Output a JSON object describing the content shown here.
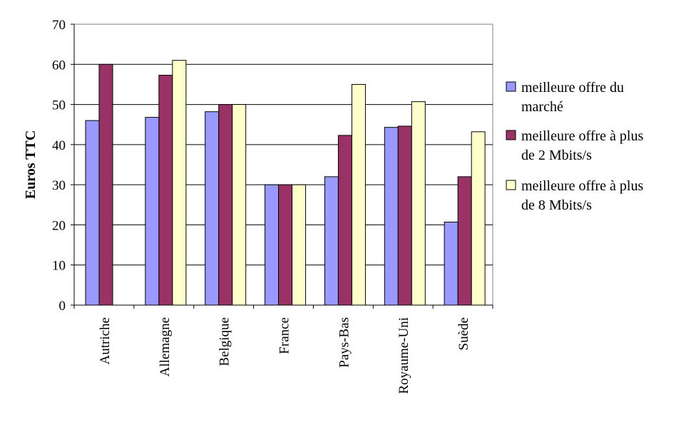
{
  "chart_data": {
    "type": "bar",
    "title": "",
    "xlabel": "",
    "ylabel": "Euros TTC",
    "ylim": [
      0,
      70
    ],
    "yticks": [
      0,
      10,
      20,
      30,
      40,
      50,
      60,
      70
    ],
    "grid": true,
    "legend_position": "right",
    "categories": [
      "Autriche",
      "Allemagne",
      "Belgique",
      "France",
      "Pays-Bas",
      "Royaume-Uni",
      "Suède"
    ],
    "series": [
      {
        "name": "meilleure offre du marché",
        "legend_lines": [
          "meilleure offre du",
          "marché"
        ],
        "color": "#9999FF",
        "values": [
          46,
          46.8,
          48.2,
          30,
          32,
          44.3,
          20.7
        ]
      },
      {
        "name": "meilleure offre à plus de 2 Mbits/s",
        "legend_lines": [
          "meilleure offre à plus",
          "de 2 Mbits/s"
        ],
        "color": "#993366",
        "values": [
          60,
          57.3,
          50,
          30,
          42.3,
          44.6,
          32
        ]
      },
      {
        "name": "meilleure offre à plus de 8 Mbits/s",
        "legend_lines": [
          "meilleure offre à plus",
          "de 8 Mbits/s"
        ],
        "color": "#FFFFCC",
        "values": [
          null,
          61,
          50,
          30,
          55,
          50.7,
          43.2
        ]
      }
    ]
  }
}
